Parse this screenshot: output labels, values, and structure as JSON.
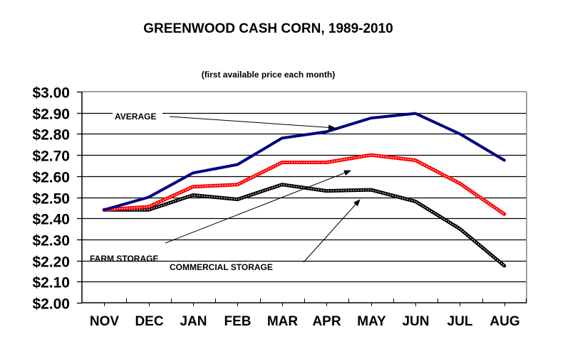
{
  "chart_data": {
    "type": "line",
    "title": "GREENWOOD CASH CORN, 1989-2010",
    "subtitle": "(first available price each month)",
    "xlabel": "",
    "ylabel": "",
    "categories": [
      "NOV",
      "DEC",
      "JAN",
      "FEB",
      "MAR",
      "APR",
      "MAY",
      "JUN",
      "JUL",
      "AUG"
    ],
    "ylim": [
      2.0,
      3.0
    ],
    "ytick_step": 0.1,
    "ytick_labels": [
      "$2.00",
      "$2.10",
      "$2.20",
      "$2.30",
      "$2.40",
      "$2.50",
      "$2.60",
      "$2.70",
      "$2.80",
      "$2.90",
      "$3.00"
    ],
    "grid": true,
    "legend": "none (inline annotations with arrows)",
    "series": [
      {
        "name": "AVERAGE",
        "color": "#000080",
        "style": "solid",
        "values": [
          2.44,
          2.5,
          2.615,
          2.655,
          2.78,
          2.81,
          2.875,
          2.897,
          2.8,
          2.675
        ]
      },
      {
        "name": "FARM STORAGE",
        "color": "#ff0000",
        "style": "dotted",
        "values": [
          2.44,
          2.455,
          2.55,
          2.56,
          2.665,
          2.665,
          2.7,
          2.675,
          2.565,
          2.42
        ]
      },
      {
        "name": "COMMERCIAL STORAGE",
        "color": "#000000",
        "style": "dotted",
        "values": [
          2.44,
          2.44,
          2.51,
          2.49,
          2.56,
          2.53,
          2.535,
          2.48,
          2.35,
          2.175
        ]
      }
    ],
    "annotations": [
      {
        "text": "AVERAGE",
        "points_to": "AVERAGE",
        "target_category": "APR"
      },
      {
        "text": "FARM STORAGE",
        "points_to": "FARM STORAGE",
        "target_category": "APR"
      },
      {
        "text": "COMMERCIAL STORAGE",
        "points_to": "COMMERCIAL STORAGE",
        "target_category": "MAY"
      }
    ]
  }
}
